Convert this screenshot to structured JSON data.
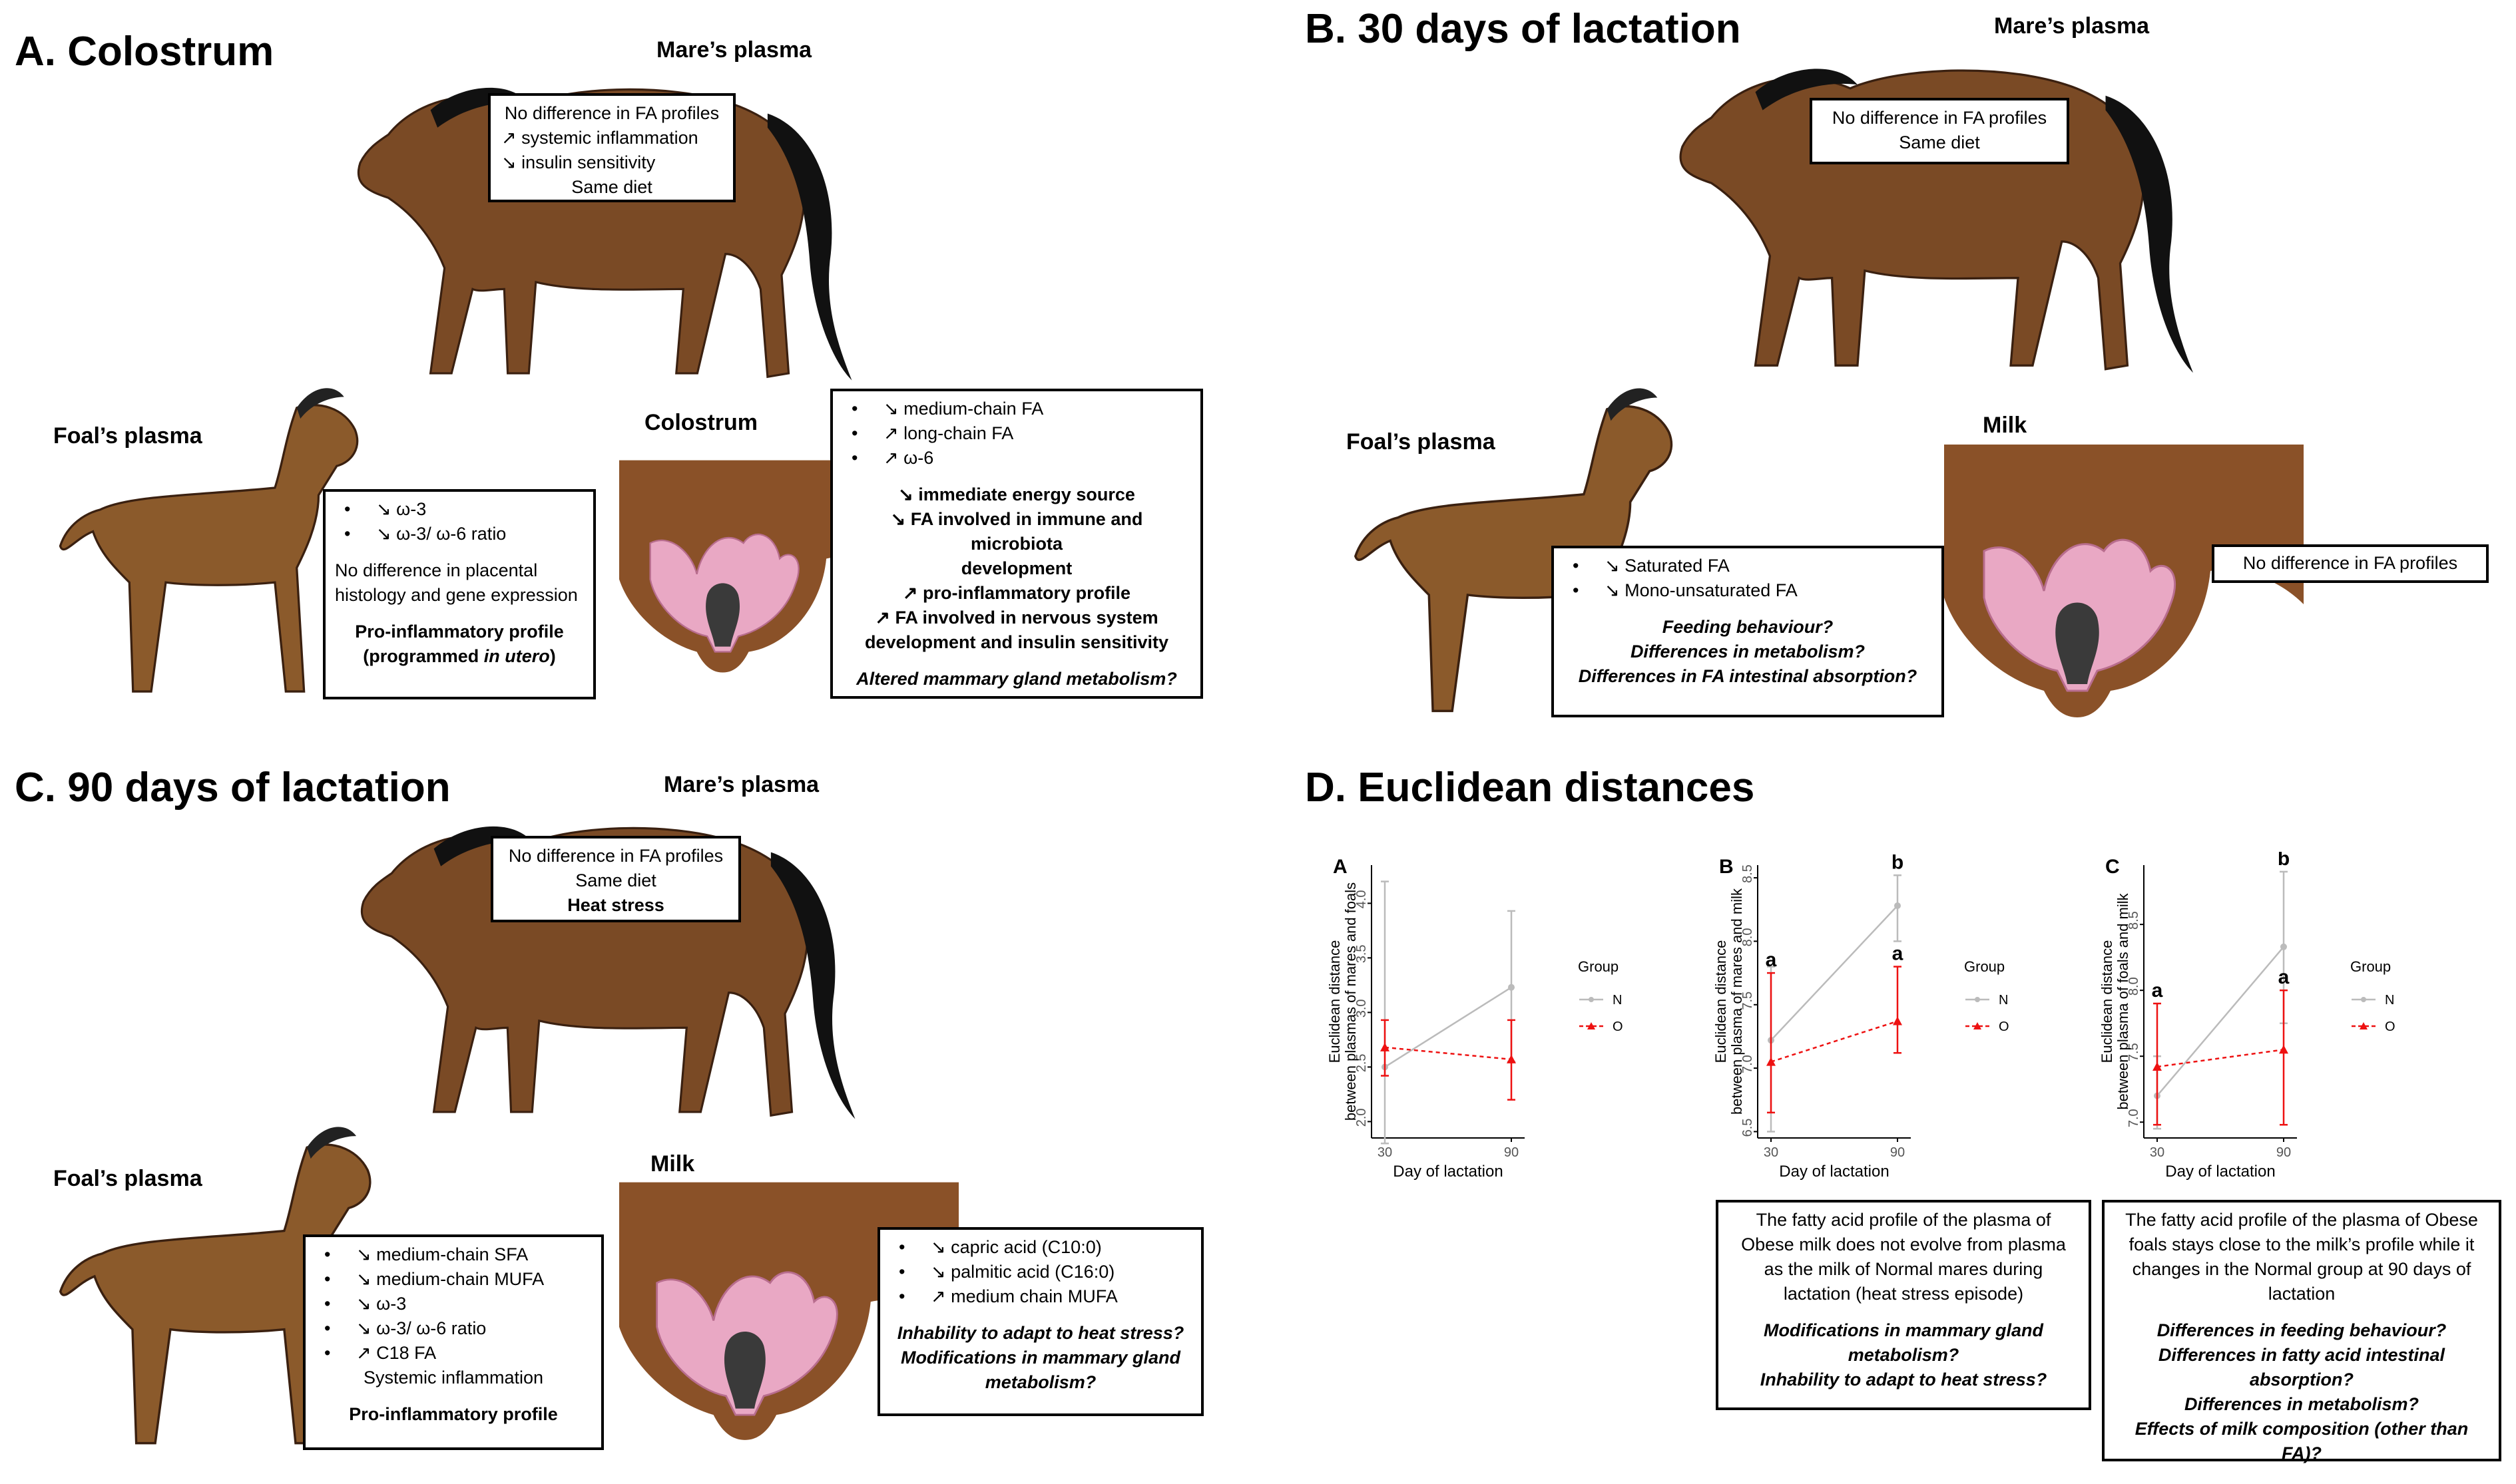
{
  "colors": {
    "horse_coat": "#7a4a25",
    "horse_mane": "#111111",
    "udder": "#8a5128",
    "tissue": "#e9a8c4",
    "series_N": "#bbbbbb",
    "series_O": "#ee1111"
  },
  "panel_a": {
    "title": "A. Colostrum",
    "mare_label": "Mare’s plasma",
    "mare_box": [
      "No difference in FA profiles",
      "↗ systemic inflammation",
      "↘ insulin sensitivity",
      "Same diet"
    ],
    "foal_label": "Foal’s plasma",
    "foal_bullets": [
      "↘ ω-3",
      "↘ ω-3/ ω-6 ratio"
    ],
    "foal_text": [
      "No difference in placental",
      "histology and gene expression"
    ],
    "foal_bold_1": "Pro-inflammatory profile",
    "foal_bold_2": "(programmed ",
    "foal_bold_2_italic": "in utero",
    "foal_bold_2_end": ")",
    "udder_label": "Colostrum",
    "udder_bullets": [
      "↘ medium-chain FA",
      "↗ long-chain FA",
      "↗ ω-6"
    ],
    "udder_bold": [
      "↘ immediate energy source",
      "↘ FA involved in immune and microbiota",
      "development",
      "↗ pro-inflammatory profile",
      "↗ FA involved in nervous system",
      "development and insulin sensitivity"
    ],
    "udder_question": "Altered mammary gland metabolism?"
  },
  "panel_b": {
    "title": "B. 30 days of lactation",
    "mare_label": "Mare’s plasma",
    "mare_box": [
      "No difference in FA profiles",
      "Same diet"
    ],
    "foal_label": "Foal’s plasma",
    "foal_bullets": [
      "↘ Saturated FA",
      "↘ Mono-unsaturated FA"
    ],
    "foal_questions": [
      "Feeding behaviour?",
      "Differences in metabolism?",
      "Differences in FA intestinal absorption?"
    ],
    "udder_label": "Milk",
    "udder_box": "No difference in FA profiles"
  },
  "panel_c": {
    "title": "C. 90 days of lactation",
    "mare_label": "Mare’s plasma",
    "mare_box": [
      "No difference in FA profiles",
      "Same diet"
    ],
    "mare_box_bold": "Heat stress",
    "foal_label": "Foal’s plasma",
    "foal_bullets": [
      "↘ medium-chain SFA",
      "↘ medium-chain MUFA",
      "↘ ω-3",
      "↘ ω-3/ ω-6 ratio",
      "↗ C18 FA"
    ],
    "foal_text": "Systemic inflammation",
    "foal_bold": "Pro-inflammatory profile",
    "udder_label": "Milk",
    "udder_bullets": [
      "↘ capric acid (C10:0)",
      "↘ palmitic acid (C16:0)",
      "↗ medium chain MUFA"
    ],
    "udder_questions": [
      "Inhability to adapt to heat stress?",
      "Modifications in mammary gland",
      "metabolism?"
    ]
  },
  "panel_d": {
    "title": "D. Euclidean distances",
    "caption_b": [
      "The fatty acid profile of the plasma of",
      "Obese milk does not evolve from plasma",
      "as the milk of Normal mares during",
      "lactation (heat stress episode)"
    ],
    "caption_b_bold": [
      "Modifications in mammary gland",
      "metabolism?",
      "Inhability to adapt to heat stress?"
    ],
    "caption_c": [
      "The fatty acid profile of the plasma of Obese",
      "foals stays close to the milk’s profile while it",
      "changes in the Normal group at 90 days of",
      "lactation"
    ],
    "caption_c_bold": [
      "Differences in feeding behaviour?",
      "Differences in fatty acid intestinal",
      "absorption?",
      "Differences in metabolism?",
      "Effects of milk composition (other than FA)?"
    ]
  },
  "chart_data": [
    {
      "type": "line",
      "panel_letter": "A",
      "xlabel": "Day of lactation",
      "ylabel": "Euclidean distance between plasmas of mares and foals",
      "x": [
        30,
        90
      ],
      "ylim": [
        1.85,
        4.35
      ],
      "yticks": [
        "2.0",
        "2.5",
        "3.0",
        "3.5",
        "4.0"
      ],
      "ytick_values": [
        2.0,
        2.5,
        3.0,
        3.5,
        4.0
      ],
      "legend_title": "Group",
      "series": [
        {
          "name": "N",
          "values": [
            2.5,
            3.23
          ],
          "err_low": [
            1.8,
            2.55
          ],
          "err_high": [
            4.2,
            3.93
          ]
        },
        {
          "name": "O",
          "values": [
            2.68,
            2.57
          ],
          "err_low": [
            2.42,
            2.2
          ],
          "err_high": [
            2.93,
            2.93
          ]
        }
      ],
      "letters_30": [],
      "letters_90": []
    },
    {
      "type": "line",
      "panel_letter": "B",
      "xlabel": "Day of lactation",
      "ylabel": "Euclidean distance between plasma of mares and milk",
      "x": [
        30,
        90
      ],
      "ylim": [
        6.45,
        8.6
      ],
      "yticks": [
        "6.5",
        "7.0",
        "7.5",
        "8.0",
        "8.5"
      ],
      "ytick_values": [
        6.5,
        7.0,
        7.5,
        8.0,
        8.5
      ],
      "legend_title": "Group",
      "series": [
        {
          "name": "N",
          "values": [
            7.22,
            8.28
          ],
          "err_low": [
            6.5,
            8.0
          ],
          "err_high": [
            7.8,
            8.52
          ]
        },
        {
          "name": "O",
          "values": [
            7.05,
            7.37
          ],
          "err_low": [
            6.65,
            7.12
          ],
          "err_high": [
            7.75,
            7.8
          ]
        }
      ],
      "letters_30": [
        "a"
      ],
      "letters_90": [
        "b",
        "a"
      ]
    },
    {
      "type": "line",
      "panel_letter": "C",
      "xlabel": "Day of lactation",
      "ylabel": "Euclidean distance between plasma of foals and milk",
      "x": [
        30,
        90
      ],
      "ylim": [
        6.88,
        8.95
      ],
      "yticks": [
        "7.0",
        "7.5",
        "8.0",
        "8.5"
      ],
      "ytick_values": [
        7.0,
        7.5,
        8.0,
        8.5
      ],
      "legend_title": "Group",
      "series": [
        {
          "name": "N",
          "values": [
            7.2,
            8.33
          ],
          "err_low": [
            6.95,
            7.75
          ],
          "err_high": [
            7.5,
            8.9
          ]
        },
        {
          "name": "O",
          "values": [
            7.42,
            7.55
          ],
          "err_low": [
            6.98,
            6.98
          ],
          "err_high": [
            7.9,
            8.0
          ]
        }
      ],
      "letters_30": [
        "a"
      ],
      "letters_90": [
        "b",
        "a"
      ]
    }
  ]
}
